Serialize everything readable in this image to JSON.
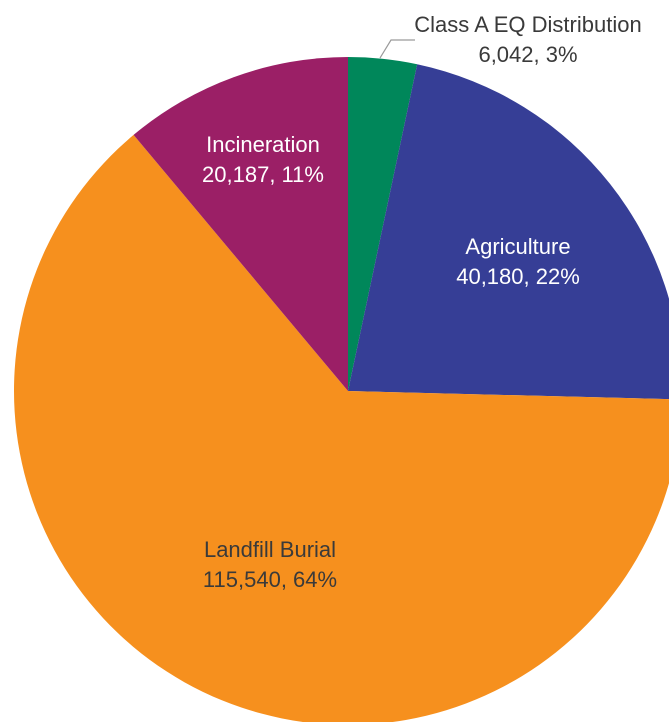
{
  "chart_data": {
    "type": "pie",
    "title": "",
    "slices": [
      {
        "name": "Class A EQ Distribution",
        "value": 6042,
        "percent_label": "6,042, 3%",
        "color": "#00875a"
      },
      {
        "name": "Agriculture",
        "value": 40180,
        "percent_label": "40,180, 22%",
        "color": "#363e96"
      },
      {
        "name": "Landfill Burial",
        "value": 115540,
        "percent_label": "115,540, 64%",
        "color": "#f6901e"
      },
      {
        "name": "Incineration",
        "value": 20187,
        "percent_label": "20,187, 11%",
        "color": "#9b1f66"
      }
    ],
    "legend": "none",
    "labels_on_slices": true
  }
}
